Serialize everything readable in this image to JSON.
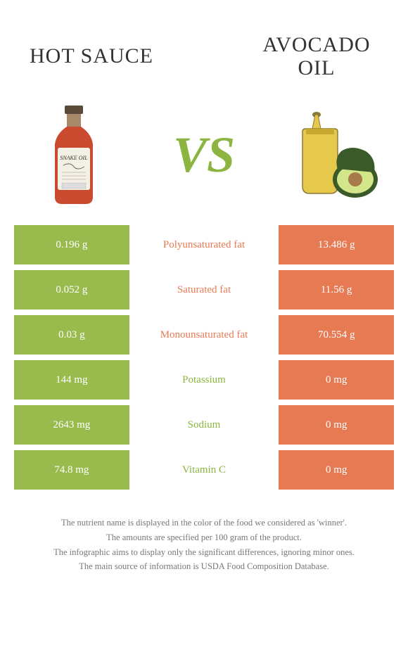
{
  "header": {
    "left_title": "HOT SAUCE",
    "right_title_line1": "AVOCADO",
    "right_title_line2": "OIL",
    "vs": "VS"
  },
  "colors": {
    "left_bg": "#99bb4d",
    "right_bg": "#e67a53",
    "left_text": "#8bb440",
    "right_text": "#e67a53",
    "footer_text": "#777777",
    "background": "#ffffff"
  },
  "rows": [
    {
      "left": "0.196 g",
      "label": "Polyunsaturated fat",
      "right": "13.486 g",
      "winner": "right"
    },
    {
      "left": "0.052 g",
      "label": "Saturated fat",
      "right": "11.56 g",
      "winner": "right"
    },
    {
      "left": "0.03 g",
      "label": "Monounsaturated fat",
      "right": "70.554 g",
      "winner": "right"
    },
    {
      "left": "144 mg",
      "label": "Potassium",
      "right": "0 mg",
      "winner": "left"
    },
    {
      "left": "2643 mg",
      "label": "Sodium",
      "right": "0 mg",
      "winner": "left"
    },
    {
      "left": "74.8 mg",
      "label": "Vitamin C",
      "right": "0 mg",
      "winner": "left"
    }
  ],
  "footer": {
    "line1": "The nutrient name is displayed in the color of the food we considered as 'winner'.",
    "line2": "The amounts are specified per 100 gram of the product.",
    "line3": "The infographic aims to display only the significant differences, ignoring minor ones.",
    "line4": "The main source of information is USDA Food Composition Database."
  },
  "image_left": {
    "type": "hot-sauce-bottle",
    "bottle_color": "#c94a2e",
    "label_color": "#f5f0e6",
    "cap_color": "#5a4a3a"
  },
  "image_right": {
    "type": "avocado-oil",
    "oil_color": "#e6c84a",
    "bottle_outline": "#8a7a3a",
    "avocado_skin": "#3a5a2a",
    "avocado_flesh": "#d4e68a",
    "avocado_pit": "#a67a4a"
  }
}
